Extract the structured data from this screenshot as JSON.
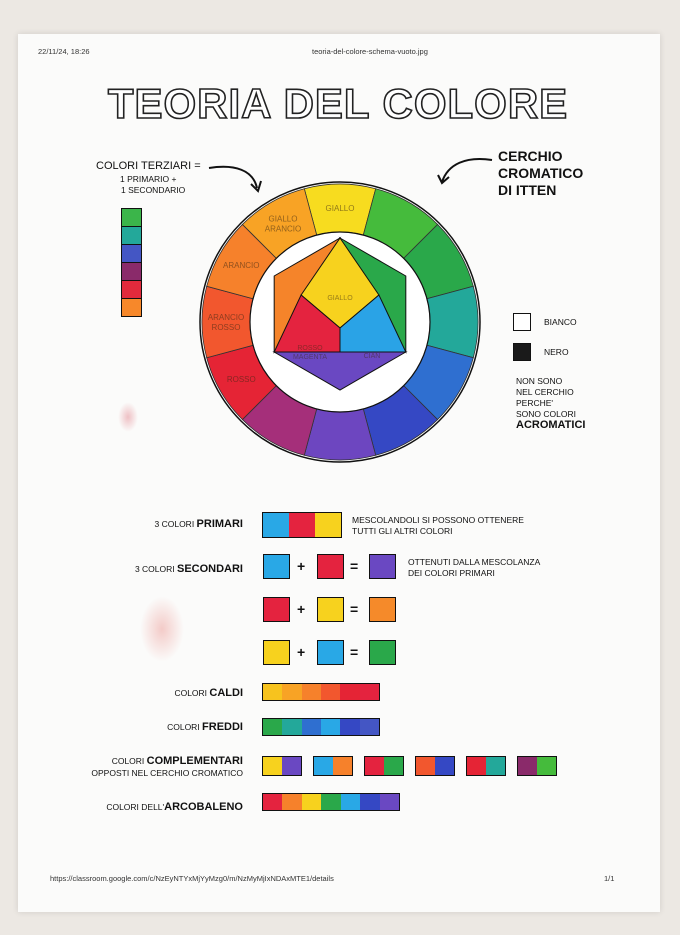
{
  "header": {
    "datetime": "22/11/24, 18:26",
    "filename": "teoria-del-colore-schema-vuoto.jpg"
  },
  "title": "TEORIA DEL COLORE",
  "tertiary_note": {
    "heading": "COLORI TERZIARI =",
    "line1": "1 PRIMARIO +",
    "line2": "1 SECONDARIO"
  },
  "tertiary_column_colors": [
    "#3bb54a",
    "#23a89a",
    "#4456c4",
    "#8a2a6a",
    "#e12a3c",
    "#f7882a"
  ],
  "itten_label": {
    "line1": "CERCHIO",
    "line2": "CROMATICO",
    "line3": "DI ITTEN"
  },
  "wheel": {
    "segments": [
      {
        "label": "GIALLO",
        "color": "#f7dc1f"
      },
      {
        "label": "",
        "color": "#45bb3c"
      },
      {
        "label": "",
        "color": "#2aa84a"
      },
      {
        "label": "",
        "color": "#23a89a"
      },
      {
        "label": "",
        "color": "#2f6fd0"
      },
      {
        "label": "",
        "color": "#3548c4"
      },
      {
        "label": "",
        "color": "#6d46c0"
      },
      {
        "label": "",
        "color": "#a52f7a"
      },
      {
        "label": "ROSSO",
        "color": "#e52435"
      },
      {
        "label": "ARANCIO ROSSO",
        "color": "#f2572e"
      },
      {
        "label": "ARANCIO",
        "color": "#f6812b"
      },
      {
        "label": "GIALLO ARANCIO",
        "color": "#f8a325"
      }
    ],
    "inner": [
      {
        "label": "GIALLO",
        "color": "#f7d21e"
      },
      {
        "label": "ROSSO MAGENTA",
        "color": "#e4233f"
      },
      {
        "label": "CIAN",
        "color": "#2aa3e6"
      },
      {
        "label": "",
        "color": "#2aa84a"
      },
      {
        "label": "",
        "color": "#6a48c2"
      },
      {
        "label": "",
        "color": "#f5842a"
      }
    ]
  },
  "achromatic": {
    "white_label": "BIANCO",
    "black_label": "NERO",
    "note1": "NON SONO",
    "note2": "NEL CERCHIO",
    "note3": "PERCHE'",
    "note4": "SONO COLORI",
    "note5": "ACROMATICI"
  },
  "rows": {
    "primari": {
      "prefix": "3 COLORI ",
      "bold": "PRIMARI",
      "colors": [
        "#29a8e6",
        "#e4233f",
        "#f7d21e"
      ],
      "note1": "MESCOLANDOLI SI POSSONO OTTENERE",
      "note2": "TUTTI GLI ALTRI COLORI"
    },
    "secondari": {
      "prefix": "3 COLORI ",
      "bold": "SECONDARI",
      "note1": "OTTENUTI DALLA MESCOLANZA",
      "note2": "DEI COLORI PRIMARI",
      "mixes": [
        {
          "a": "#29a8e6",
          "b": "#e4233f",
          "r": "#6a48c2"
        },
        {
          "a": "#e4233f",
          "b": "#f7d21e",
          "r": "#f58a2a"
        },
        {
          "a": "#f7d21e",
          "b": "#29a8e6",
          "r": "#2aa84a"
        }
      ]
    },
    "plus": "+",
    "equals": "=",
    "caldi": {
      "prefix": "COLORI ",
      "bold": "CALDI",
      "colors": [
        "#f7c31e",
        "#f8a325",
        "#f6812b",
        "#f2572e",
        "#e52435",
        "#e4233f"
      ]
    },
    "freddi": {
      "prefix": "COLORI ",
      "bold": "FREDDI",
      "colors": [
        "#2aa84a",
        "#23a89a",
        "#2f6fd0",
        "#29a8e6",
        "#3548c4",
        "#4456c4"
      ]
    },
    "complementari": {
      "prefix": "COLORI ",
      "bold": "COMPLEMENTARI",
      "line2": "OPPOSTI NEL CERCHIO CROMATICO",
      "pairs": [
        [
          "#f7d21e",
          "#6a48c2"
        ],
        [
          "#29a8e6",
          "#f6812b"
        ],
        [
          "#e4233f",
          "#2aa84a"
        ],
        [
          "#f2572e",
          "#3548c4"
        ],
        [
          "#e52435",
          "#23a89a"
        ],
        [
          "#8a2a6a",
          "#45bb3c"
        ]
      ]
    },
    "arcobaleno": {
      "prefix": "COLORI DELL'",
      "bold": "ARCOBALENO",
      "colors": [
        "#e4233f",
        "#f6812b",
        "#f7d21e",
        "#2aa84a",
        "#29a8e6",
        "#3548c4",
        "#6a48c2"
      ]
    }
  },
  "footer": {
    "url": "https://classroom.google.com/c/NzEyNTYxMjYyMzg0/m/NzMyMjIxNDAxMTE1/details",
    "page": "1/1"
  }
}
